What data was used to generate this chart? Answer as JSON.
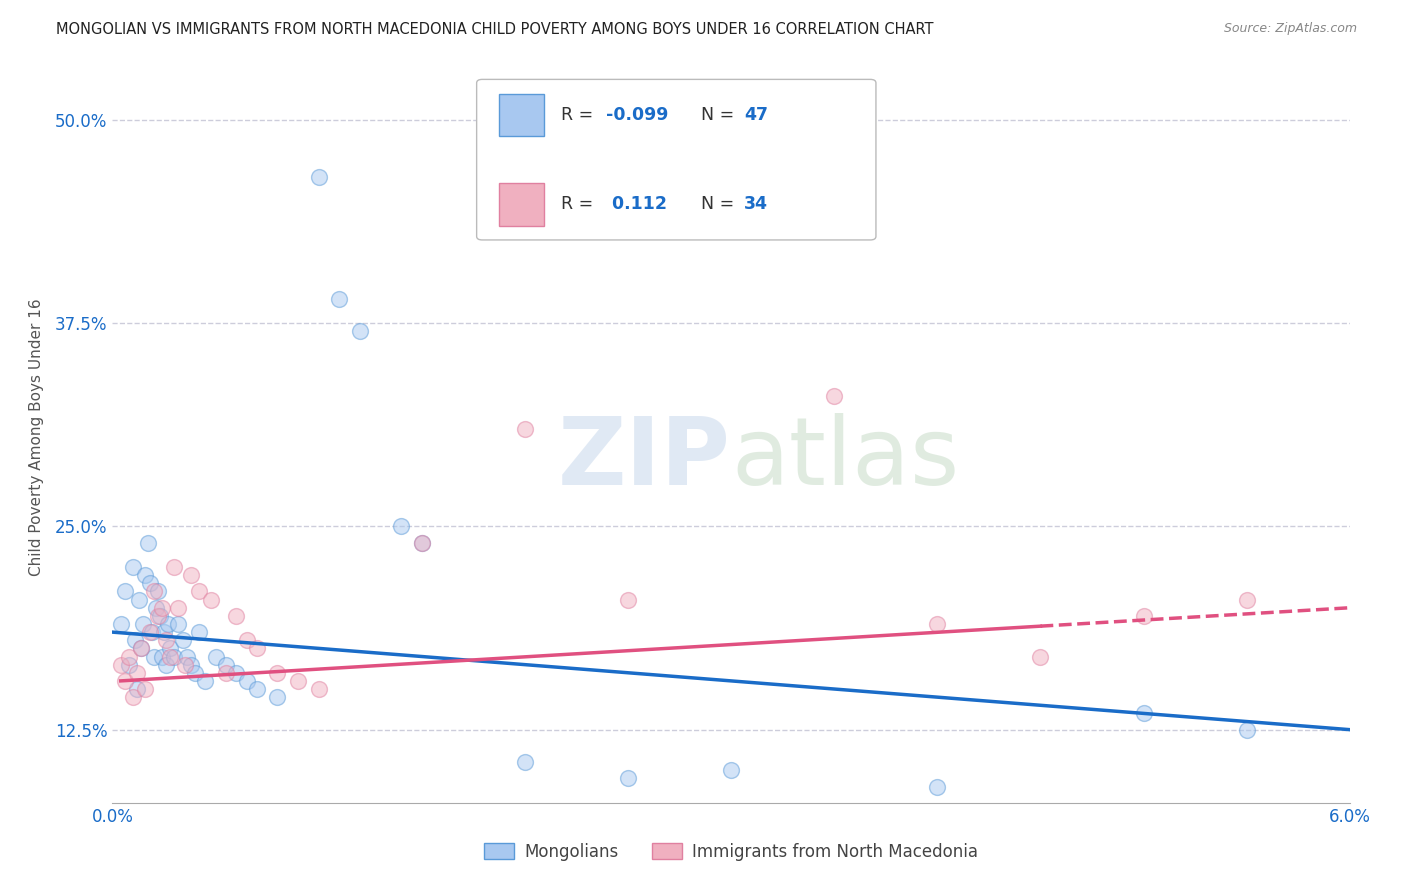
{
  "title": "MONGOLIAN VS IMMIGRANTS FROM NORTH MACEDONIA CHILD POVERTY AMONG BOYS UNDER 16 CORRELATION CHART",
  "source": "Source: ZipAtlas.com",
  "ylabel": "Child Poverty Among Boys Under 16",
  "xlim": [
    0.0,
    6.0
  ],
  "ylim": [
    8.0,
    53.0
  ],
  "yticks": [
    12.5,
    25.0,
    37.5,
    50.0
  ],
  "ytick_labels": [
    "12.5%",
    "25.0%",
    "37.5%",
    "50.0%"
  ],
  "blue_line_color": "#1a6cc8",
  "pink_line_color": "#e05080",
  "grid_color": "#c8c8d8",
  "background_color": "#ffffff",
  "dot_size": 130,
  "dot_alpha": 0.5,
  "legend_bottom_labels": [
    "Mongolians",
    "Immigrants from North Macedonia"
  ],
  "scatter_blue_x": [
    0.04,
    0.06,
    0.08,
    0.1,
    0.11,
    0.12,
    0.13,
    0.14,
    0.15,
    0.16,
    0.17,
    0.18,
    0.19,
    0.2,
    0.21,
    0.22,
    0.23,
    0.24,
    0.25,
    0.26,
    0.27,
    0.28,
    0.3,
    0.32,
    0.34,
    0.36,
    0.38,
    0.4,
    0.42,
    0.45,
    0.5,
    0.55,
    0.6,
    0.65,
    0.7,
    0.8,
    1.0,
    1.1,
    1.2,
    1.4,
    1.5,
    2.0,
    2.5,
    3.0,
    4.0,
    5.0,
    5.5
  ],
  "scatter_blue_y": [
    19.0,
    21.0,
    16.5,
    22.5,
    18.0,
    15.0,
    20.5,
    17.5,
    19.0,
    22.0,
    24.0,
    21.5,
    18.5,
    17.0,
    20.0,
    21.0,
    19.5,
    17.0,
    18.5,
    16.5,
    19.0,
    17.5,
    17.0,
    19.0,
    18.0,
    17.0,
    16.5,
    16.0,
    18.5,
    15.5,
    17.0,
    16.5,
    16.0,
    15.5,
    15.0,
    14.5,
    46.5,
    39.0,
    37.0,
    25.0,
    24.0,
    10.5,
    9.5,
    10.0,
    9.0,
    13.5,
    12.5
  ],
  "scatter_pink_x": [
    0.04,
    0.06,
    0.08,
    0.1,
    0.12,
    0.14,
    0.16,
    0.18,
    0.2,
    0.22,
    0.24,
    0.26,
    0.28,
    0.3,
    0.32,
    0.35,
    0.38,
    0.42,
    0.48,
    0.55,
    0.6,
    0.65,
    0.7,
    0.8,
    0.9,
    1.0,
    1.5,
    2.0,
    2.5,
    3.5,
    4.0,
    4.5,
    5.0,
    5.5
  ],
  "scatter_pink_y": [
    16.5,
    15.5,
    17.0,
    14.5,
    16.0,
    17.5,
    15.0,
    18.5,
    21.0,
    19.5,
    20.0,
    18.0,
    17.0,
    22.5,
    20.0,
    16.5,
    22.0,
    21.0,
    20.5,
    16.0,
    19.5,
    18.0,
    17.5,
    16.0,
    15.5,
    15.0,
    24.0,
    31.0,
    20.5,
    33.0,
    19.0,
    17.0,
    19.5,
    20.5
  ]
}
